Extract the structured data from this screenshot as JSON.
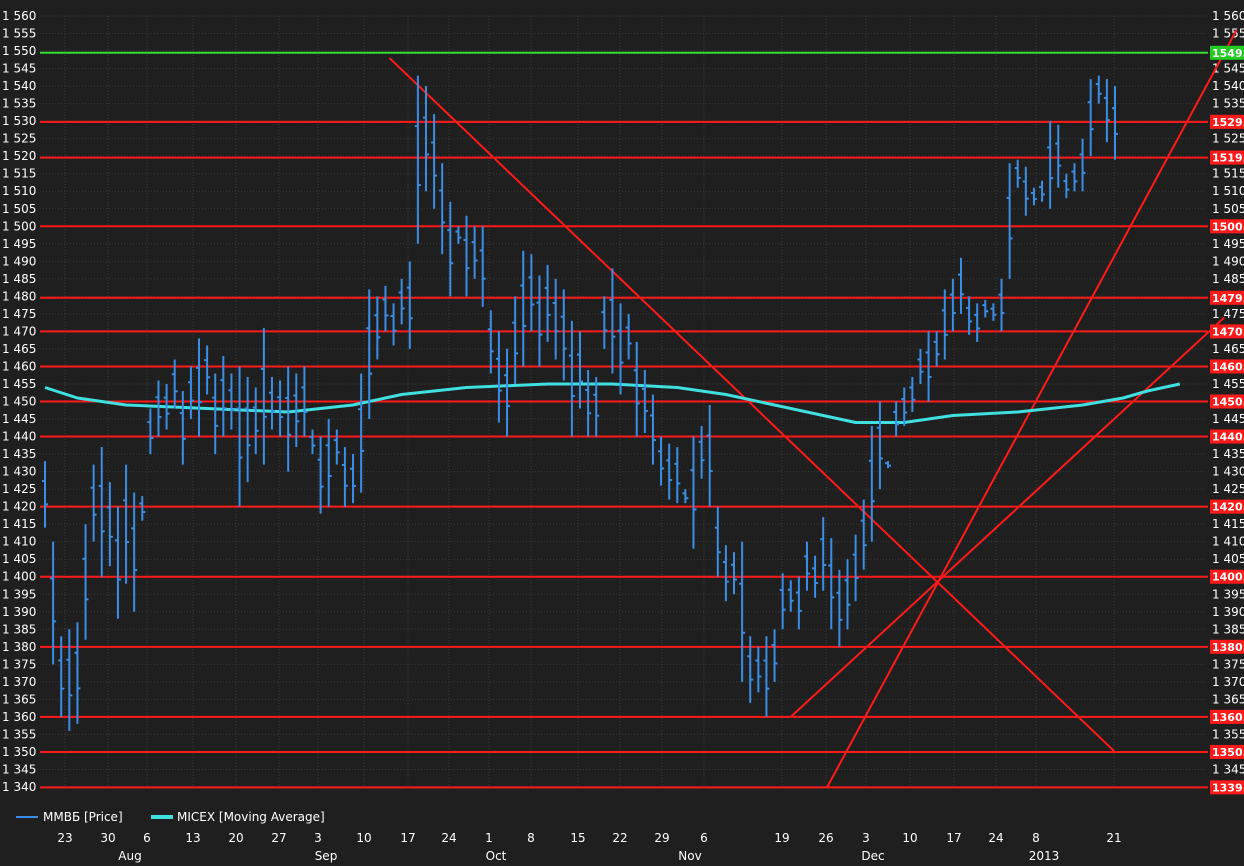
{
  "chart_data": {
    "type": "ohlc",
    "title": "",
    "ylim": [
      1340,
      1560
    ],
    "y_ticks": [
      1340,
      1345,
      1350,
      1355,
      1360,
      1365,
      1370,
      1375,
      1380,
      1385,
      1390,
      1395,
      1400,
      1405,
      1410,
      1415,
      1420,
      1425,
      1430,
      1435,
      1440,
      1445,
      1450,
      1455,
      1460,
      1465,
      1470,
      1475,
      1480,
      1485,
      1490,
      1495,
      1500,
      1505,
      1510,
      1515,
      1520,
      1525,
      1530,
      1535,
      1540,
      1545,
      1550,
      1555,
      1560
    ],
    "grid": true,
    "legend_position": "bottom-left",
    "colors": {
      "background": "#1f1f1f",
      "grid": "#3a3a3a",
      "price": "#3a8ee6",
      "moving_average": "#40e0e0",
      "level_line": "#ff1a1a",
      "top_level_line": "#33dd33",
      "trend_line": "#ff1a1a",
      "badge": "#ff1a1a",
      "top_badge": "#22cc22"
    },
    "x_day_labels": [
      "23",
      "30",
      "6",
      "13",
      "20",
      "27",
      "3",
      "10",
      "17",
      "24",
      "1",
      "8",
      "15",
      "22",
      "29",
      "6",
      "19",
      "26",
      "3",
      "10",
      "17",
      "24",
      "8",
      "21"
    ],
    "x_month_labels": [
      "Aug",
      "Sep",
      "Oct",
      "Nov",
      "Dec",
      "2013"
    ],
    "legend": [
      {
        "name": "ММВБ [Price]",
        "color": "#3a8ee6"
      },
      {
        "name": "MICEX [Moving Average]",
        "color": "#40e0e0"
      }
    ],
    "horizontal_levels": [
      {
        "value": 1549.5,
        "badge": "1549.",
        "color": "#33dd33"
      },
      {
        "value": 1529.8,
        "badge": "1529.",
        "color": "#ff1a1a"
      },
      {
        "value": 1519.6,
        "badge": "1519.",
        "color": "#ff1a1a"
      },
      {
        "value": 1500,
        "badge": "1500.",
        "color": "#ff1a1a"
      },
      {
        "value": 1479.6,
        "badge": "1479.",
        "color": "#ff1a1a"
      },
      {
        "value": 1470,
        "badge": "1470.",
        "color": "#ff1a1a"
      },
      {
        "value": 1460,
        "badge": "1460.",
        "color": "#ff1a1a"
      },
      {
        "value": 1450,
        "badge": "1450.",
        "color": "#ff1a1a"
      },
      {
        "value": 1440,
        "badge": "1440.",
        "color": "#ff1a1a"
      },
      {
        "value": 1420,
        "badge": "1420.",
        "color": "#ff1a1a"
      },
      {
        "value": 1400,
        "badge": "1400.",
        "color": "#ff1a1a"
      },
      {
        "value": 1380,
        "badge": "1380.",
        "color": "#ff1a1a"
      },
      {
        "value": 1360,
        "badge": "1360.",
        "color": "#ff1a1a"
      },
      {
        "value": 1350,
        "badge": "1350.",
        "color": "#ff1a1a"
      },
      {
        "value": 1339.9,
        "badge": "1339.",
        "color": "#ff1a1a"
      }
    ],
    "series": [
      {
        "name": "ММВБ [Price]",
        "bars": [
          [
            1433,
            1414
          ],
          [
            1410,
            1375
          ],
          [
            1383,
            1360
          ],
          [
            1385,
            1356
          ],
          [
            1387,
            1358
          ],
          [
            1415,
            1382
          ],
          [
            1432,
            1410
          ],
          [
            1437,
            1400
          ],
          [
            1427,
            1403
          ],
          [
            1420,
            1388
          ],
          [
            1432,
            1398
          ],
          [
            1424,
            1390
          ],
          [
            1423,
            1416
          ],
          [
            1448,
            1435
          ],
          [
            1456,
            1440
          ],
          [
            1455,
            1442
          ],
          [
            1462,
            1448
          ],
          [
            1453,
            1432
          ],
          [
            1460,
            1445
          ],
          [
            1468,
            1440
          ],
          [
            1466,
            1452
          ],
          [
            1458,
            1435
          ],
          [
            1463,
            1440
          ],
          [
            1458,
            1442
          ],
          [
            1460,
            1420
          ],
          [
            1457,
            1427
          ],
          [
            1454,
            1435
          ],
          [
            1471,
            1432
          ],
          [
            1457,
            1442
          ],
          [
            1456,
            1440
          ],
          [
            1460,
            1430
          ],
          [
            1458,
            1437
          ],
          [
            1460,
            1440
          ],
          [
            1442,
            1435
          ],
          [
            1440,
            1418
          ],
          [
            1445,
            1420
          ],
          [
            1442,
            1432
          ],
          [
            1437,
            1420
          ],
          [
            1435,
            1421
          ],
          [
            1458,
            1424
          ],
          [
            1482,
            1445
          ],
          [
            1480,
            1462
          ],
          [
            1483,
            1470
          ],
          [
            1478,
            1466
          ],
          [
            1485,
            1472
          ],
          [
            1490,
            1465
          ],
          [
            1543,
            1495
          ],
          [
            1540,
            1510
          ],
          [
            1532,
            1505
          ],
          [
            1518,
            1492
          ],
          [
            1507,
            1480
          ],
          [
            1500,
            1495
          ],
          [
            1503,
            1480
          ],
          [
            1500,
            1485
          ],
          [
            1500,
            1477
          ],
          [
            1476,
            1458
          ],
          [
            1470,
            1444
          ],
          [
            1465,
            1440
          ],
          [
            1480,
            1455
          ],
          [
            1493,
            1460
          ],
          [
            1492,
            1470
          ],
          [
            1486,
            1460
          ],
          [
            1489,
            1467
          ],
          [
            1485,
            1462
          ],
          [
            1482,
            1456
          ],
          [
            1473,
            1440
          ],
          [
            1470,
            1448
          ],
          [
            1459,
            1440
          ],
          [
            1457,
            1440
          ],
          [
            1480,
            1465
          ],
          [
            1488,
            1458
          ],
          [
            1478,
            1452
          ],
          [
            1475,
            1462
          ],
          [
            1467,
            1440
          ],
          [
            1459,
            1441
          ],
          [
            1452,
            1432
          ],
          [
            1440,
            1426
          ],
          [
            1438,
            1422
          ],
          [
            1437,
            1421
          ],
          [
            1425,
            1421
          ],
          [
            1440,
            1408
          ],
          [
            1443,
            1428
          ],
          [
            1449,
            1420
          ],
          [
            1420,
            1400
          ],
          [
            1409,
            1393
          ],
          [
            1407,
            1395
          ],
          [
            1410,
            1370
          ],
          [
            1383,
            1364
          ],
          [
            1380,
            1367
          ],
          [
            1383,
            1360
          ],
          [
            1385,
            1370
          ],
          [
            1401,
            1385
          ],
          [
            1399,
            1390
          ],
          [
            1400,
            1385
          ],
          [
            1410,
            1396
          ],
          [
            1406,
            1394
          ],
          [
            1417,
            1396
          ],
          [
            1411,
            1385
          ],
          [
            1402,
            1380
          ],
          [
            1405,
            1385
          ],
          [
            1412,
            1393
          ],
          [
            1422,
            1402
          ],
          [
            1443,
            1410
          ],
          [
            1450,
            1425
          ],
          [
            1433,
            1431
          ],
          [
            1450,
            1440
          ],
          [
            1454,
            1443
          ],
          [
            1457,
            1447
          ],
          [
            1465,
            1455
          ],
          [
            1470,
            1450
          ],
          [
            1470,
            1460
          ],
          [
            1482,
            1462
          ],
          [
            1485,
            1470
          ],
          [
            1491,
            1475
          ],
          [
            1480,
            1469
          ],
          [
            1478,
            1467
          ],
          [
            1479,
            1474
          ],
          [
            1478,
            1473
          ],
          [
            1485,
            1470
          ],
          [
            1518,
            1485
          ],
          [
            1519,
            1511
          ],
          [
            1517,
            1503
          ],
          [
            1511,
            1506
          ],
          [
            1513,
            1507
          ],
          [
            1530,
            1505
          ],
          [
            1529,
            1511
          ],
          [
            1515,
            1508
          ],
          [
            1518,
            1510
          ],
          [
            1525,
            1510
          ],
          [
            1542,
            1520
          ],
          [
            1543,
            1535
          ],
          [
            1542,
            1524
          ],
          [
            1540,
            1519
          ]
        ]
      },
      {
        "name": "MICEX [Moving Average]",
        "points": [
          [
            0,
            1454
          ],
          [
            4,
            1451
          ],
          [
            10,
            1449
          ],
          [
            20,
            1448
          ],
          [
            30,
            1447
          ],
          [
            38,
            1449
          ],
          [
            44,
            1452
          ],
          [
            52,
            1454
          ],
          [
            62,
            1455
          ],
          [
            70,
            1455
          ],
          [
            78,
            1454
          ],
          [
            84,
            1452
          ],
          [
            92,
            1448
          ],
          [
            100,
            1444
          ],
          [
            106,
            1444
          ],
          [
            112,
            1446
          ],
          [
            120,
            1447
          ],
          [
            128,
            1449
          ],
          [
            133,
            1451
          ],
          [
            136,
            1453
          ],
          [
            140,
            1455
          ]
        ]
      }
    ]
  }
}
